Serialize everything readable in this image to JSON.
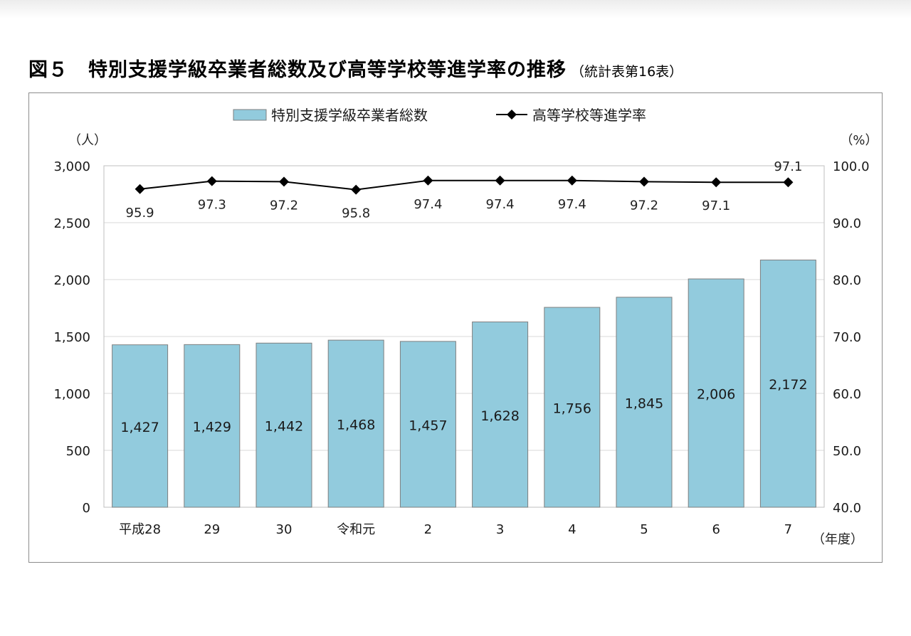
{
  "title": {
    "main": "図５　特別支援学級卒業者総数及び高等学校等進学率の推移",
    "note": "（統計表第16表）"
  },
  "chart_data": {
    "type": "bar",
    "categories": [
      "平成28",
      "29",
      "30",
      "令和元",
      "2",
      "3",
      "4",
      "5",
      "6",
      "7"
    ],
    "series": [
      {
        "name": "特別支援学級卒業者総数",
        "type": "bar",
        "axis": "left",
        "values": [
          1427,
          1429,
          1442,
          1468,
          1457,
          1628,
          1756,
          1845,
          2006,
          2172
        ],
        "labels": [
          "1,427",
          "1,429",
          "1,442",
          "1,468",
          "1,457",
          "1,628",
          "1,756",
          "1,845",
          "2,006",
          "2,172"
        ],
        "color": "#92cbdd"
      },
      {
        "name": "高等学校等進学率",
        "type": "line",
        "axis": "right",
        "values": [
          95.9,
          97.3,
          97.2,
          95.8,
          97.4,
          97.4,
          97.4,
          97.2,
          97.1,
          97.1
        ],
        "labels": [
          "95.9",
          "97.3",
          "97.2",
          "95.8",
          "97.4",
          "97.4",
          "97.4",
          "97.2",
          "97.1",
          "97.1"
        ],
        "color": "#000000"
      }
    ],
    "y_left": {
      "unit": "（人）",
      "range": [
        0,
        3000
      ],
      "ticks": [
        0,
        500,
        1000,
        1500,
        2000,
        2500,
        3000
      ],
      "tick_labels": [
        "0",
        "500",
        "1,000",
        "1,500",
        "2,000",
        "2,500",
        "3,000"
      ]
    },
    "y_right": {
      "unit": "（%）",
      "range": [
        40,
        100
      ],
      "ticks": [
        40,
        50,
        60,
        70,
        80,
        90,
        100
      ],
      "tick_labels": [
        "40.0",
        "50.0",
        "60.0",
        "70.0",
        "80.0",
        "90.0",
        "100.0"
      ]
    },
    "x_unit": "（年度）",
    "grid": true,
    "legend": "top-center"
  }
}
